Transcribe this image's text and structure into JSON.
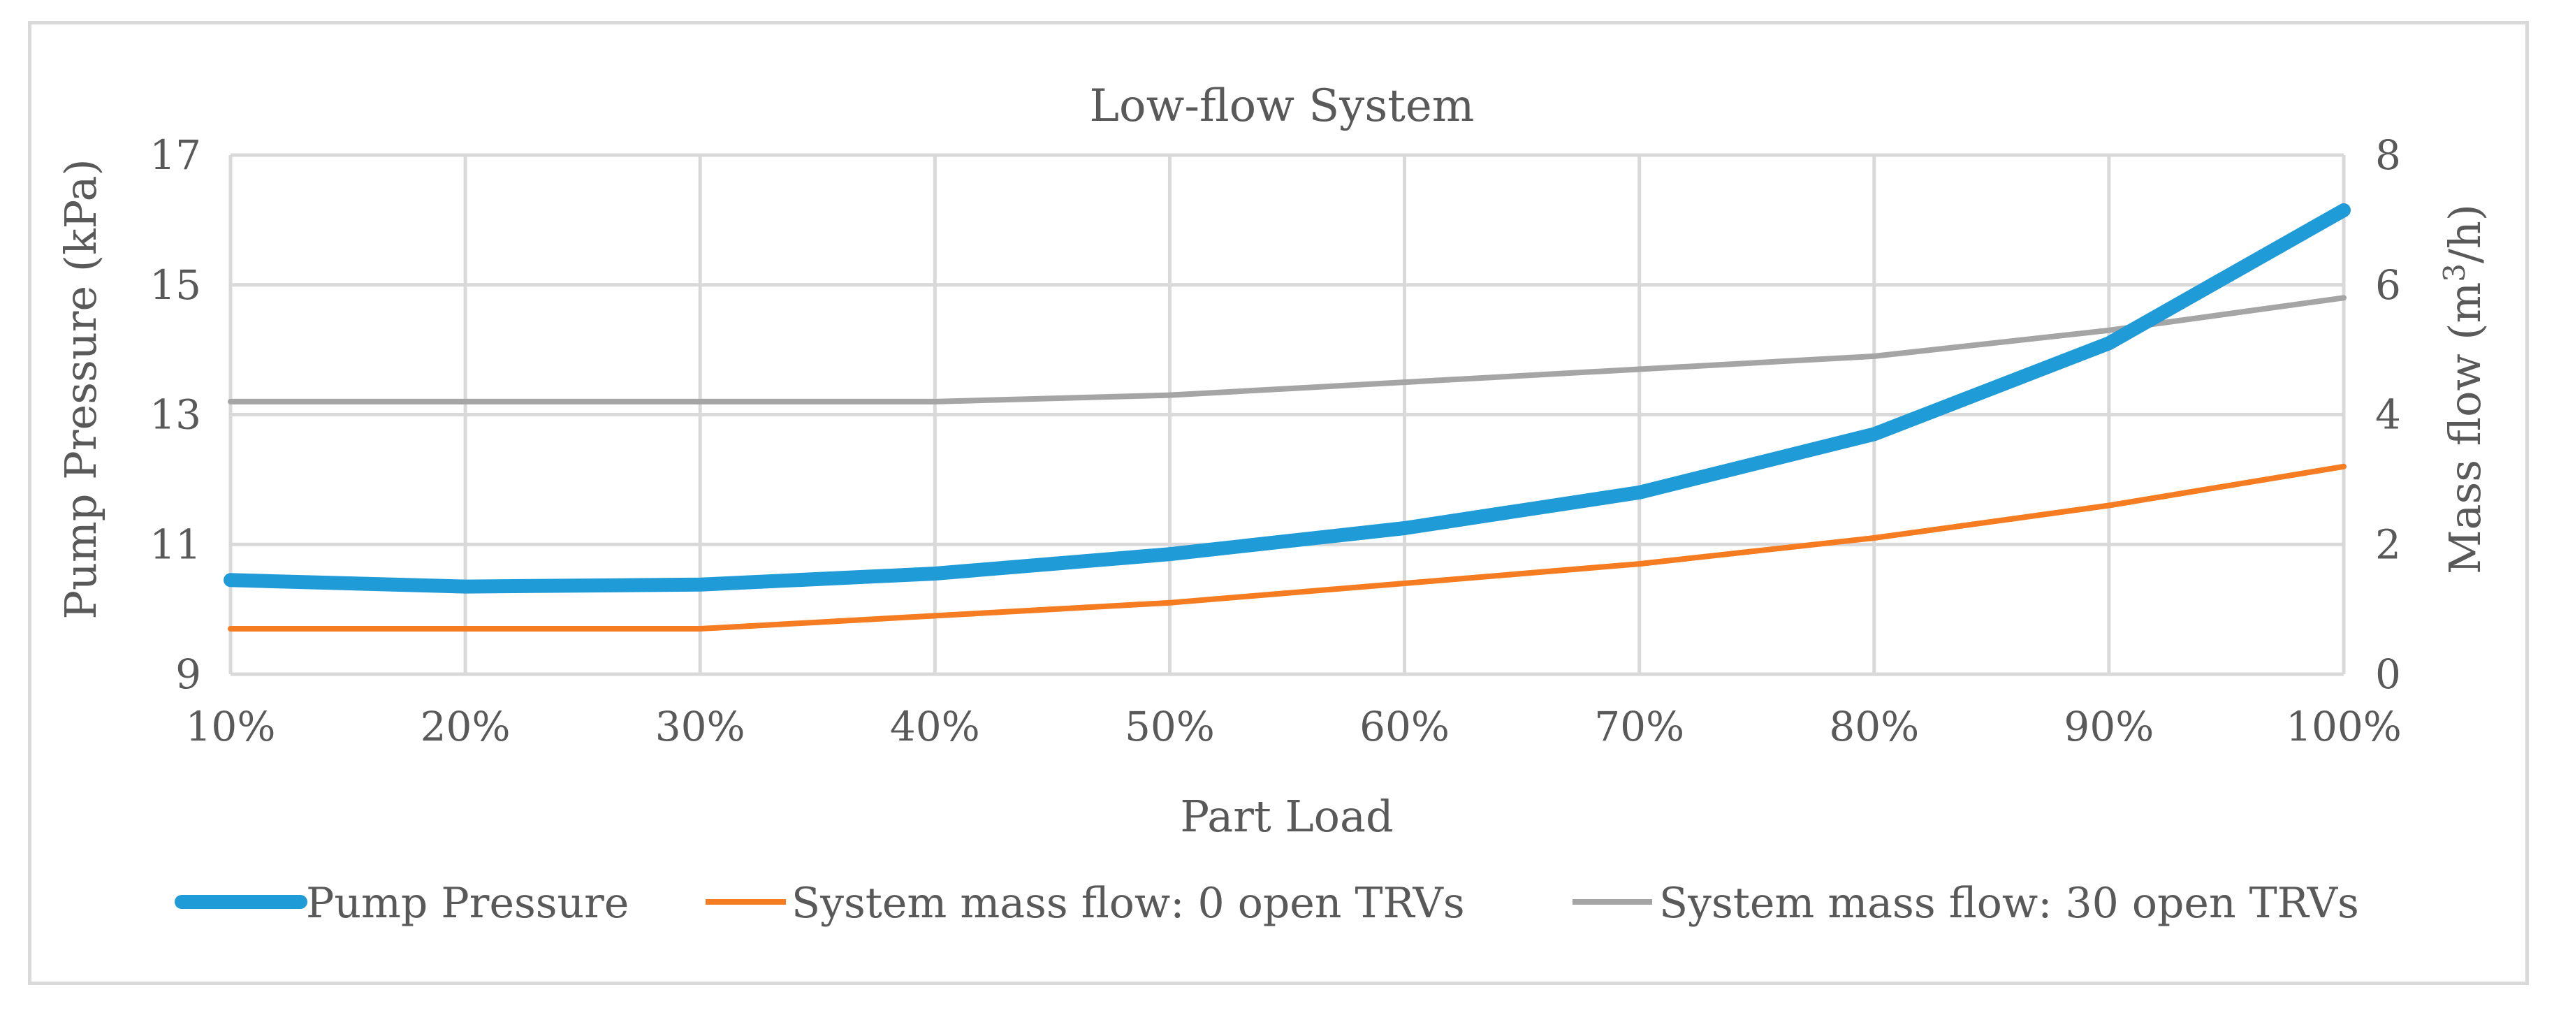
{
  "chart_data": {
    "type": "line",
    "title": "Low-flow System",
    "xlabel": "Part Load",
    "ylabel": "Pump Pressure (kPa)",
    "ylabel2_prefix": "Mass flow (m",
    "ylabel2_sup": "3",
    "ylabel2_suffix": "/h)",
    "categories": [
      "10%",
      "20%",
      "30%",
      "40%",
      "50%",
      "60%",
      "70%",
      "80%",
      "90%",
      "100%"
    ],
    "ylim": [
      9,
      17
    ],
    "yticks": [
      9,
      11,
      13,
      15,
      17
    ],
    "ylim2": [
      0,
      8
    ],
    "yticks2": [
      0,
      2,
      4,
      6,
      8
    ],
    "grid": true,
    "legend_position": "bottom",
    "series": [
      {
        "name": "Pump Pressure",
        "axis": "left",
        "color": "#1f9bd7",
        "values": [
          10.45,
          10.35,
          10.38,
          10.55,
          10.85,
          11.25,
          11.8,
          12.7,
          14.1,
          16.15
        ]
      },
      {
        "name": "System mass flow: 0 open TRVs",
        "axis": "right",
        "color": "#f57c20",
        "values": [
          0.7,
          0.7,
          0.7,
          0.9,
          1.1,
          1.4,
          1.7,
          2.1,
          2.6,
          3.2
        ]
      },
      {
        "name": "System mass flow: 30 open TRVs",
        "axis": "right",
        "color": "#a5a5a5",
        "values": [
          4.2,
          4.2,
          4.2,
          4.2,
          4.3,
          4.5,
          4.7,
          4.9,
          5.3,
          5.8
        ]
      }
    ]
  }
}
